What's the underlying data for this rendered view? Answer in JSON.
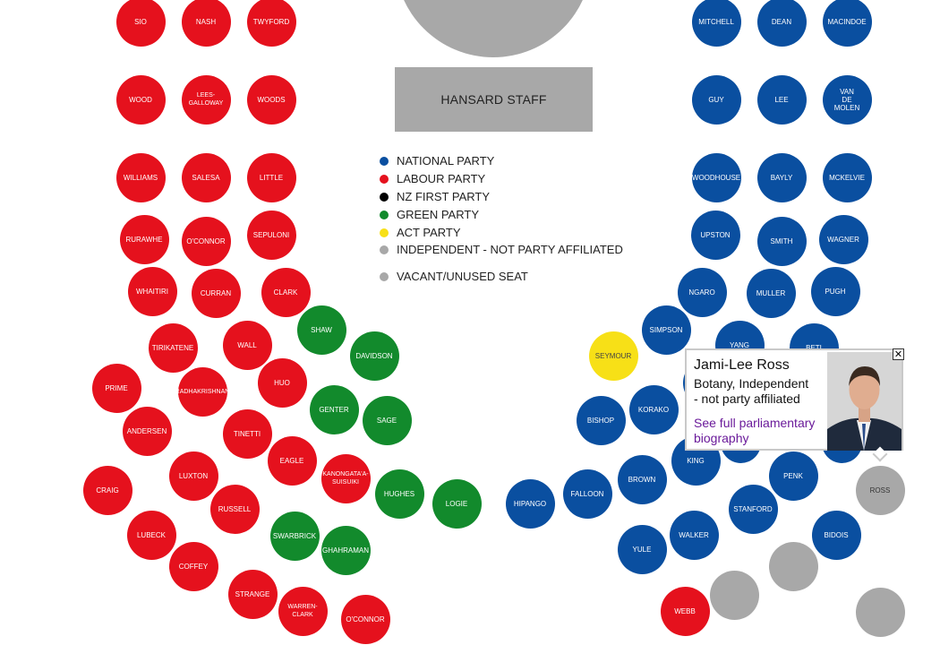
{
  "colors": {
    "national": "#0a4fa0",
    "labour": "#e5111d",
    "nzfirst": "#000000",
    "green": "#128a2c",
    "act": "#f7e017",
    "independent": "#a8a8a8",
    "vacant": "#a8a8a8"
  },
  "hansard_label": "HANSARD STAFF",
  "legend": [
    {
      "label": "NATIONAL PARTY",
      "party": "national"
    },
    {
      "label": "LABOUR PARTY",
      "party": "labour"
    },
    {
      "label": "NZ FIRST PARTY",
      "party": "nzfirst"
    },
    {
      "label": "GREEN PARTY",
      "party": "green"
    },
    {
      "label": "ACT PARTY",
      "party": "act"
    },
    {
      "label": "INDEPENDENT - NOT PARTY AFFILIATED",
      "party": "independent"
    },
    {
      "label": "VACANT/UNUSED SEAT",
      "party": "vacant"
    }
  ],
  "seats": [
    {
      "label": "SIO",
      "party": "labour"
    },
    {
      "label": "NASH",
      "party": "labour"
    },
    {
      "label": "TWYFORD",
      "party": "labour"
    },
    {
      "label": "WOOD",
      "party": "labour"
    },
    {
      "label": "LEES-\nGALLOWAY",
      "party": "labour"
    },
    {
      "label": "WOODS",
      "party": "labour"
    },
    {
      "label": "WILLIAMS",
      "party": "labour"
    },
    {
      "label": "SALESA",
      "party": "labour"
    },
    {
      "label": "LITTLE",
      "party": "labour"
    },
    {
      "label": "RURAWHE",
      "party": "labour"
    },
    {
      "label": "O'CONNOR",
      "party": "labour"
    },
    {
      "label": "SEPULONI",
      "party": "labour"
    },
    {
      "label": "WHAITIRI",
      "party": "labour"
    },
    {
      "label": "CURRAN",
      "party": "labour"
    },
    {
      "label": "CLARK",
      "party": "labour"
    },
    {
      "label": "TIRIKATENE",
      "party": "labour"
    },
    {
      "label": "WALL",
      "party": "labour"
    },
    {
      "label": "PRIME",
      "party": "labour"
    },
    {
      "label": "RADHAKRISHNAN",
      "party": "labour"
    },
    {
      "label": "HUO",
      "party": "labour"
    },
    {
      "label": "ANDERSEN",
      "party": "labour"
    },
    {
      "label": "TINETTI",
      "party": "labour"
    },
    {
      "label": "EAGLE",
      "party": "labour"
    },
    {
      "label": "CRAIG",
      "party": "labour"
    },
    {
      "label": "LUXTON",
      "party": "labour"
    },
    {
      "label": "KANONGATA'A-\nSUISUIKI",
      "party": "labour"
    },
    {
      "label": "RUSSELL",
      "party": "labour"
    },
    {
      "label": "LUBECK",
      "party": "labour"
    },
    {
      "label": "COFFEY",
      "party": "labour"
    },
    {
      "label": "STRANGE",
      "party": "labour"
    },
    {
      "label": "WARREN-\nCLARK",
      "party": "labour"
    },
    {
      "label": "O'CONNOR",
      "party": "labour"
    },
    {
      "label": "SHAW",
      "party": "green"
    },
    {
      "label": "DAVIDSON",
      "party": "green"
    },
    {
      "label": "GENTER",
      "party": "green"
    },
    {
      "label": "SAGE",
      "party": "green"
    },
    {
      "label": "HUGHES",
      "party": "green"
    },
    {
      "label": "LOGIE",
      "party": "green"
    },
    {
      "label": "SWARBRICK",
      "party": "green"
    },
    {
      "label": "GHAHRAMAN",
      "party": "green"
    },
    {
      "label": "SEYMOUR",
      "party": "act"
    },
    {
      "label": "MITCHELL",
      "party": "national"
    },
    {
      "label": "DEAN",
      "party": "national"
    },
    {
      "label": "MACINDOE",
      "party": "national"
    },
    {
      "label": "GUY",
      "party": "national"
    },
    {
      "label": "LEE",
      "party": "national"
    },
    {
      "label": "VAN\nDE\nMOLEN",
      "party": "national"
    },
    {
      "label": "WOODHOUSE",
      "party": "national"
    },
    {
      "label": "BAYLY",
      "party": "national"
    },
    {
      "label": "MCKELVIE",
      "party": "national"
    },
    {
      "label": "UPSTON",
      "party": "national"
    },
    {
      "label": "SMITH",
      "party": "national"
    },
    {
      "label": "WAGNER",
      "party": "national"
    },
    {
      "label": "NGARO",
      "party": "national"
    },
    {
      "label": "MULLER",
      "party": "national"
    },
    {
      "label": "PUGH",
      "party": "national"
    },
    {
      "label": "SIMPSON",
      "party": "national"
    },
    {
      "label": "YANG",
      "party": "national"
    },
    {
      "label": "BETI",
      "party": "national"
    },
    {
      "label": "",
      "party": "national"
    },
    {
      "label": "",
      "party": "national"
    },
    {
      "label": "",
      "party": "national"
    },
    {
      "label": "BISHOP",
      "party": "national"
    },
    {
      "label": "KORAKO",
      "party": "national"
    },
    {
      "label": "KING",
      "party": "national"
    },
    {
      "label": "",
      "party": "national"
    },
    {
      "label": "PENK",
      "party": "national"
    },
    {
      "label": "HIPANGO",
      "party": "national"
    },
    {
      "label": "FALLOON",
      "party": "national"
    },
    {
      "label": "BROWN",
      "party": "national"
    },
    {
      "label": "STANFORD",
      "party": "national"
    },
    {
      "label": "YULE",
      "party": "national"
    },
    {
      "label": "WALKER",
      "party": "national"
    },
    {
      "label": "BIDOIS",
      "party": "national"
    },
    {
      "label": "ROSS",
      "party": "independent"
    },
    {
      "label": "WEBB",
      "party": "labour"
    },
    {
      "label": "",
      "party": "vacant"
    },
    {
      "label": "",
      "party": "vacant"
    },
    {
      "label": "",
      "party": "vacant"
    }
  ],
  "popup": {
    "name": "Jami-Lee Ross",
    "description": "Botany, Independent\n- not party affiliated",
    "link": "See full parliamentary\nbiography",
    "close": "✕"
  }
}
